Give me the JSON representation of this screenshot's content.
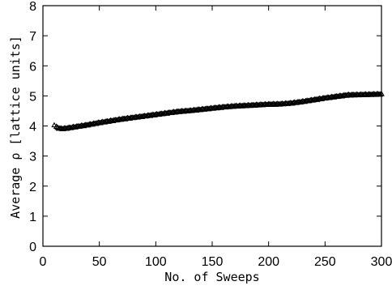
{
  "chart_data": {
    "type": "scatter",
    "title": "",
    "xlabel": "No. of Sweeps",
    "ylabel": "Average ρ [lattice units]",
    "xlim": [
      0,
      300
    ],
    "ylim": [
      0,
      8
    ],
    "x_ticks": [
      0,
      50,
      100,
      150,
      200,
      250,
      300
    ],
    "y_ticks": [
      0,
      1,
      2,
      3,
      4,
      5,
      6,
      7,
      8
    ],
    "x_tick_labels": [
      "0",
      "50",
      "100",
      "150",
      "200",
      "250",
      "300"
    ],
    "y_tick_labels": [
      "0",
      "1",
      "2",
      "3",
      "4",
      "5",
      "6",
      "7",
      "8"
    ],
    "grid": false,
    "marker": "open-triangle",
    "series": [
      {
        "x": [
          10,
          12,
          14,
          16,
          20,
          25,
          30,
          40,
          50,
          60,
          70,
          80,
          90,
          100,
          110,
          120,
          130,
          140,
          150,
          160,
          170,
          180,
          190,
          200,
          210,
          220,
          230,
          240,
          250,
          260,
          270,
          280,
          290,
          300
        ],
        "values": [
          4.02,
          3.96,
          3.92,
          3.9,
          3.91,
          3.94,
          3.97,
          4.03,
          4.1,
          4.16,
          4.22,
          4.27,
          4.32,
          4.37,
          4.42,
          4.47,
          4.5,
          4.54,
          4.58,
          4.62,
          4.65,
          4.67,
          4.69,
          4.71,
          4.72,
          4.75,
          4.8,
          4.86,
          4.92,
          4.97,
          5.02,
          5.03,
          5.04,
          5.05
        ]
      }
    ]
  }
}
